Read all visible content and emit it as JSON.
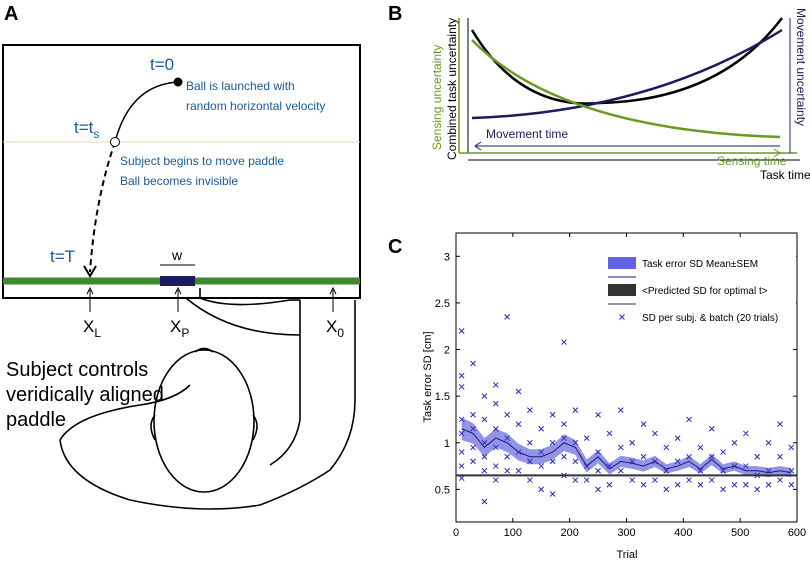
{
  "panel_a": {
    "label": "A",
    "t0": "t=0",
    "launch_1": "Ball is launched with",
    "launch_2": "random horizontal velocity",
    "ts_main": "t=t",
    "ts_sub": "s",
    "move_1": "Subject begins to move paddle",
    "move_2": "Ball becomes invisible",
    "tT": "t=T",
    "w": "w",
    "xl_main": "X",
    "xl_sub": "L",
    "xp_main": "X",
    "xp_sub": "P",
    "x0_main": "X",
    "x0_sub": "0",
    "subject_1": "Subject controls",
    "subject_2": "veridically aligned",
    "subject_3": "paddle"
  },
  "panel_b": {
    "label": "B",
    "sensing_uncertainty": "Sensing uncertainty",
    "combined_uncertainty": "Combined task uncertainty",
    "movement_uncertainty": "Movement uncertainty",
    "movement_time": "Movement time",
    "sensing_time": "Sensing time",
    "task_time": "Task time"
  },
  "chart_data": {
    "type": "scatter",
    "panel_label": "C",
    "xlabel": "Trial",
    "ylabel": "Task error SD [cm]",
    "xlim": [
      0,
      600
    ],
    "ylim": [
      0.15,
      3.25
    ],
    "xticks": [
      0,
      100,
      200,
      300,
      400,
      500,
      600
    ],
    "yticks": [
      0.5,
      1,
      1.5,
      2,
      2.5,
      3
    ],
    "legend": "upper right",
    "series": [
      {
        "name": "Task error SD Mean±SEM",
        "type": "band",
        "color": "#3b3bd6",
        "x": [
          10,
          30,
          50,
          70,
          90,
          110,
          130,
          150,
          170,
          190,
          210,
          230,
          250,
          270,
          290,
          310,
          330,
          350,
          370,
          390,
          410,
          430,
          450,
          470,
          490,
          510,
          530,
          550,
          570,
          590
        ],
        "values": [
          1.15,
          1.1,
          0.95,
          1.05,
          1.0,
          0.9,
          0.85,
          0.85,
          0.9,
          1.0,
          0.95,
          0.75,
          0.85,
          0.72,
          0.8,
          0.78,
          0.75,
          0.8,
          0.72,
          0.75,
          0.8,
          0.72,
          0.82,
          0.72,
          0.75,
          0.7,
          0.7,
          0.68,
          0.7,
          0.68
        ],
        "errors": [
          0.12,
          0.11,
          0.1,
          0.1,
          0.1,
          0.09,
          0.08,
          0.08,
          0.08,
          0.09,
          0.08,
          0.07,
          0.07,
          0.06,
          0.06,
          0.06,
          0.06,
          0.06,
          0.05,
          0.05,
          0.06,
          0.05,
          0.06,
          0.05,
          0.05,
          0.05,
          0.05,
          0.05,
          0.05,
          0.05
        ]
      },
      {
        "name": "<Predicted SD for optimal t>",
        "type": "line",
        "color": "#333333",
        "x": [
          0,
          600
        ],
        "values": [
          0.65,
          0.65
        ]
      },
      {
        "name": "SD per subj. & batch (20 trials)",
        "type": "scatter",
        "color": "#2a2ab8",
        "x": [
          10,
          10,
          10,
          10,
          10,
          10,
          10,
          10,
          30,
          30,
          30,
          30,
          30,
          50,
          50,
          50,
          50,
          50,
          50,
          70,
          70,
          70,
          70,
          70,
          70,
          90,
          90,
          90,
          90,
          90,
          110,
          110,
          110,
          110,
          130,
          130,
          130,
          130,
          150,
          150,
          150,
          150,
          170,
          170,
          170,
          170,
          190,
          190,
          190,
          190,
          190,
          210,
          210,
          210,
          210,
          230,
          230,
          230,
          250,
          250,
          250,
          250,
          270,
          270,
          270,
          290,
          290,
          290,
          310,
          310,
          310,
          330,
          330,
          330,
          350,
          350,
          350,
          370,
          370,
          370,
          390,
          390,
          390,
          410,
          410,
          410,
          430,
          430,
          430,
          450,
          450,
          450,
          470,
          470,
          470,
          490,
          490,
          490,
          510,
          510,
          510,
          530,
          530,
          530,
          550,
          550,
          550,
          570,
          570,
          570,
          590,
          590,
          590
        ],
        "values": [
          2.2,
          1.72,
          1.6,
          1.25,
          1.1,
          0.9,
          0.75,
          0.62,
          1.85,
          1.3,
          1.15,
          0.95,
          0.8,
          1.5,
          1.25,
          1.0,
          0.85,
          0.7,
          0.37,
          1.62,
          1.42,
          1.15,
          0.95,
          0.75,
          0.6,
          2.35,
          1.3,
          1.05,
          0.85,
          0.7,
          1.55,
          1.2,
          0.9,
          0.7,
          1.35,
          1.0,
          0.8,
          0.6,
          1.15,
          0.9,
          0.75,
          0.5,
          1.3,
          1.0,
          0.8,
          0.45,
          2.08,
          1.2,
          1.05,
          0.85,
          0.65,
          1.35,
          1.0,
          0.8,
          0.6,
          1.05,
          0.75,
          0.6,
          1.3,
          0.9,
          0.7,
          0.5,
          1.1,
          0.75,
          0.55,
          1.35,
          0.95,
          0.7,
          1.0,
          0.8,
          0.6,
          1.2,
          0.85,
          0.55,
          1.1,
          0.8,
          0.6,
          0.95,
          0.7,
          0.5,
          1.05,
          0.8,
          0.55,
          1.25,
          0.85,
          0.6,
          0.95,
          0.7,
          0.55,
          1.15,
          0.85,
          0.6,
          0.9,
          0.7,
          0.5,
          1.0,
          0.75,
          0.55,
          1.1,
          0.75,
          0.55,
          0.85,
          0.65,
          0.5,
          1.0,
          0.7,
          0.55,
          1.2,
          0.85,
          0.6,
          0.95,
          0.7,
          0.55
        ]
      }
    ]
  }
}
